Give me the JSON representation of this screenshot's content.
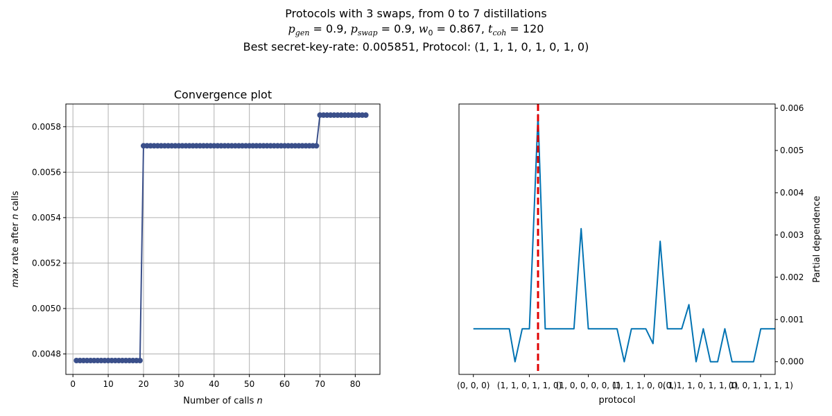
{
  "figure": {
    "title_line1": "Protocols with 3 swaps, from 0 to 7 distillations",
    "params": {
      "p_gen": "0.9",
      "p_swap": "0.9",
      "w0": "0.867",
      "t_coh": "120"
    },
    "title_line3": "Best secret-key-rate: 0.005851, Protocol: (1, 1, 1, 0, 1, 0, 1, 0)"
  },
  "colors": {
    "convergence_line": "#3a4f8a",
    "dependence_line": "#0072b2",
    "best_marker": "#e00000",
    "grid": "#b0b0b0"
  },
  "chart_data": [
    {
      "type": "line",
      "title": "Convergence plot",
      "xlabel": "Number of calls n",
      "ylabel": "max rate after n calls",
      "xlim": [
        -2,
        87
      ],
      "ylim": [
        0.00471,
        0.0059
      ],
      "xticks": [
        0,
        10,
        20,
        30,
        40,
        50,
        60,
        70,
        80
      ],
      "yticks": [
        0.0048,
        0.005,
        0.0052,
        0.0054,
        0.0056,
        0.0058
      ],
      "grid": true,
      "marker": "circle",
      "segments": [
        {
          "x_start": 1,
          "x_end": 19,
          "y": 0.004771
        },
        {
          "x_start": 20,
          "x_end": 69,
          "y": 0.005716
        },
        {
          "x_start": 70,
          "x_end": 83,
          "y": 0.005851
        }
      ]
    },
    {
      "type": "line",
      "title": "",
      "xlabel": "protocol",
      "ylabel": "Partial dependence",
      "y_axis_side": "right",
      "xlim": [
        -0.2,
        4.2
      ],
      "ylim": [
        -0.0003,
        0.0061
      ],
      "yticks": [
        0.0,
        0.001,
        0.002,
        0.003,
        0.004,
        0.005,
        0.006
      ],
      "xtick_labels": [
        "(0, 0, 0)",
        "(1, 1, 0, 1, 1, 0)",
        "(1, 0, 0, 0, 0, 1)",
        "(1, 1, 1, 0, 0, 1)",
        "(0, 1, 1, 0, 1, 1, 1)",
        "(0, 0, 1, 1, 1, 1)"
      ],
      "xtick_positions": [
        0,
        0.78,
        1.6,
        2.38,
        3.16,
        4.0
      ],
      "grid": false,
      "best_protocol_x": 0.9,
      "x": [
        0,
        0.5,
        0.58,
        0.68,
        0.78,
        0.9,
        1.0,
        1.4,
        1.5,
        1.6,
        2.0,
        2.1,
        2.2,
        2.4,
        2.5,
        2.6,
        2.7,
        2.9,
        3.0,
        3.1,
        3.2,
        3.3,
        3.4,
        3.5,
        3.6,
        3.7,
        3.9,
        4.0,
        4.1,
        4.2
      ],
      "values": [
        0.00078,
        0.00078,
        0.0,
        0.00078,
        0.00078,
        0.00585,
        0.00078,
        0.00078,
        0.00315,
        0.00078,
        0.00078,
        0.0,
        0.00078,
        0.00078,
        0.00043,
        0.00285,
        0.00078,
        0.00078,
        0.00135,
        0.0,
        0.00078,
        0.0,
        0.0,
        0.00078,
        0.0,
        0.0,
        0.0,
        0.00078,
        0.00078,
        0.00078
      ]
    }
  ]
}
